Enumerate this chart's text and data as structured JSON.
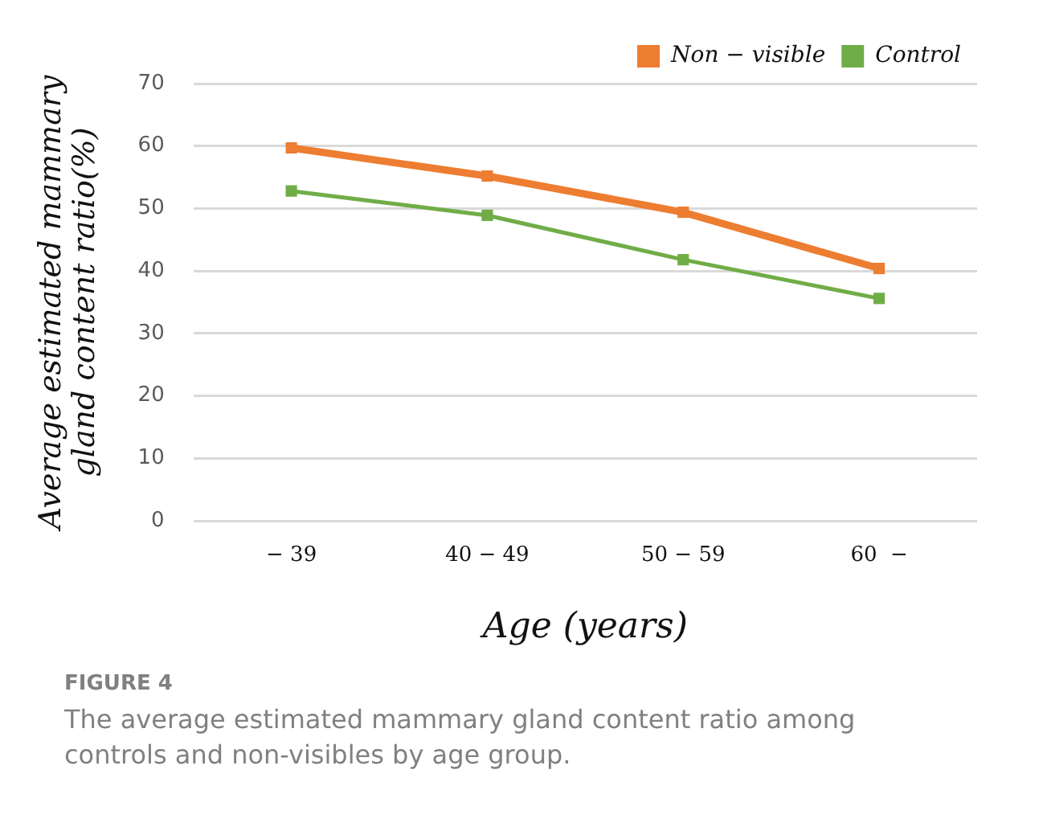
{
  "chart_data": {
    "type": "line",
    "xlabel": "Age (years)",
    "ylabel": "Average estimated mammary gland content ratio(%)",
    "categories": [
      "− 39",
      "40 − 49",
      "50 − 59",
      "60  −"
    ],
    "series": [
      {
        "name": "Non − visible",
        "color": "#ed7d31",
        "values": [
          59.7,
          55.2,
          49.4,
          40.4
        ]
      },
      {
        "name": "Control",
        "color": "#70ad47",
        "values": [
          52.8,
          48.9,
          41.8,
          35.6
        ]
      }
    ],
    "ylim": [
      0,
      70
    ],
    "yticks": [
      0,
      10,
      20,
      30,
      40,
      50,
      60,
      70
    ],
    "grid": "y",
    "legend": "top right",
    "marker": "square",
    "line_style": "solid",
    "annotations": [
      "FIGURE 4",
      "The average estimated mammary gland content ratio among controls and non-visibles by age group."
    ]
  }
}
